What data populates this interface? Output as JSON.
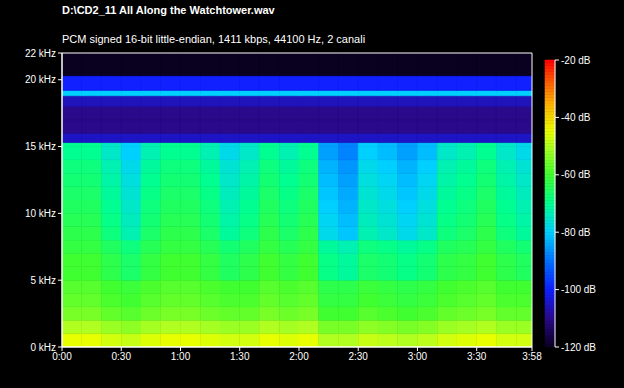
{
  "chart_data": {
    "type": "heatmap",
    "title": "D:\\CD2_11 All Along the Watchtower.wav",
    "subtitle": "PCM signed 16-bit little-endian, 1411 kbps, 44100 Hz, 2 canali",
    "xlim": [
      0,
      238
    ],
    "xticks": [
      {
        "value": 0,
        "label": "0:00"
      },
      {
        "value": 30,
        "label": "0:30"
      },
      {
        "value": 60,
        "label": "1:00"
      },
      {
        "value": 90,
        "label": "1:30"
      },
      {
        "value": 120,
        "label": "2:00"
      },
      {
        "value": 150,
        "label": "2:30"
      },
      {
        "value": 180,
        "label": "3:00"
      },
      {
        "value": 210,
        "label": "3:30"
      },
      {
        "value": 238,
        "label": "3:58"
      }
    ],
    "ylim": [
      0,
      22
    ],
    "yticks": [
      {
        "value": 0,
        "label": "0 kHz"
      },
      {
        "value": 5,
        "label": "5 kHz"
      },
      {
        "value": 10,
        "label": "10 kHz"
      },
      {
        "value": 15,
        "label": "15 kHz"
      },
      {
        "value": 20,
        "label": "20 kHz"
      },
      {
        "value": 22,
        "label": "22 kHz"
      }
    ],
    "x_edges": [
      0,
      10,
      20,
      30,
      40,
      50,
      60,
      70,
      80,
      90,
      100,
      110,
      120,
      130,
      140,
      150,
      160,
      170,
      180,
      190,
      200,
      210,
      220,
      230,
      238
    ],
    "y_edges": [
      0,
      1,
      2,
      3,
      4,
      5,
      6,
      7,
      8,
      9,
      10,
      11,
      12,
      13,
      14,
      15,
      15.3,
      16,
      17,
      18,
      18.8,
      19.2,
      20.3,
      22
    ],
    "cells": [
      [
        -45,
        -45,
        -47,
        -48,
        -46,
        -45,
        -45,
        -46,
        -47,
        -47,
        -45,
        -46,
        -45,
        -50,
        -50,
        -48,
        -49,
        -50,
        -49,
        -47,
        -46,
        -45,
        -47,
        -47
      ],
      [
        -50,
        -50,
        -52,
        -53,
        -51,
        -50,
        -50,
        -51,
        -52,
        -52,
        -50,
        -51,
        -50,
        -55,
        -55,
        -53,
        -54,
        -55,
        -54,
        -52,
        -51,
        -50,
        -52,
        -52
      ],
      [
        -55,
        -55,
        -57,
        -58,
        -56,
        -55,
        -55,
        -56,
        -57,
        -57,
        -55,
        -56,
        -55,
        -60,
        -60,
        -58,
        -59,
        -60,
        -59,
        -57,
        -56,
        -55,
        -57,
        -57
      ],
      [
        -57,
        -57,
        -59,
        -60,
        -58,
        -57,
        -57,
        -58,
        -59,
        -59,
        -57,
        -58,
        -57,
        -62,
        -62,
        -60,
        -61,
        -62,
        -61,
        -59,
        -58,
        -57,
        -59,
        -59
      ],
      [
        -58,
        -58,
        -60,
        -61,
        -59,
        -58,
        -58,
        -59,
        -60,
        -60,
        -58,
        -59,
        -58,
        -63,
        -63,
        -61,
        -62,
        -63,
        -62,
        -60,
        -59,
        -58,
        -60,
        -60
      ],
      [
        -60,
        -60,
        -63,
        -66,
        -62,
        -60,
        -60,
        -62,
        -65,
        -63,
        -60,
        -62,
        -60,
        -69,
        -71,
        -66,
        -67,
        -69,
        -67,
        -63,
        -62,
        -60,
        -63,
        -65
      ],
      [
        -60,
        -60,
        -63,
        -66,
        -62,
        -60,
        -60,
        -62,
        -65,
        -63,
        -60,
        -62,
        -60,
        -69,
        -71,
        -66,
        -67,
        -69,
        -67,
        -63,
        -62,
        -60,
        -63,
        -65
      ],
      [
        -62,
        -62,
        -65,
        -68,
        -64,
        -62,
        -62,
        -64,
        -67,
        -65,
        -62,
        -64,
        -62,
        -71,
        -73,
        -68,
        -69,
        -71,
        -69,
        -65,
        -64,
        -62,
        -65,
        -67
      ],
      [
        -63,
        -63,
        -68,
        -73,
        -66,
        -63,
        -63,
        -66,
        -71,
        -68,
        -63,
        -66,
        -63,
        -78,
        -81,
        -73,
        -75,
        -78,
        -75,
        -68,
        -66,
        -63,
        -68,
        -71
      ],
      [
        -64,
        -64,
        -69,
        -74,
        -67,
        -64,
        -64,
        -67,
        -72,
        -69,
        -64,
        -67,
        -64,
        -79,
        -82,
        -74,
        -76,
        -79,
        -76,
        -69,
        -67,
        -64,
        -69,
        -72
      ],
      [
        -65,
        -65,
        -70,
        -75,
        -68,
        -65,
        -65,
        -68,
        -73,
        -70,
        -65,
        -68,
        -65,
        -80,
        -83,
        -75,
        -77,
        -80,
        -77,
        -70,
        -68,
        -65,
        -70,
        -73
      ],
      [
        -66,
        -66,
        -71,
        -76,
        -69,
        -66,
        -66,
        -69,
        -74,
        -71,
        -66,
        -69,
        -66,
        -81,
        -84,
        -76,
        -78,
        -81,
        -78,
        -71,
        -69,
        -66,
        -71,
        -74
      ],
      [
        -67,
        -67,
        -72,
        -77,
        -70,
        -67,
        -67,
        -70,
        -75,
        -72,
        -67,
        -70,
        -67,
        -82,
        -85,
        -77,
        -79,
        -82,
        -79,
        -72,
        -70,
        -67,
        -72,
        -75
      ],
      [
        -68,
        -68,
        -73,
        -78,
        -71,
        -68,
        -68,
        -71,
        -76,
        -73,
        -68,
        -71,
        -68,
        -83,
        -86,
        -78,
        -80,
        -83,
        -80,
        -73,
        -71,
        -68,
        -73,
        -76
      ],
      [
        -70,
        -70,
        -75,
        -80,
        -73,
        -70,
        -70,
        -73,
        -78,
        -75,
        -70,
        -73,
        -70,
        -85,
        -88,
        -80,
        -82,
        -85,
        -82,
        -75,
        -73,
        -70,
        -75,
        -78
      ],
      [
        -70,
        -70,
        -75,
        -80,
        -73,
        -70,
        -70,
        -73,
        -78,
        -75,
        -70,
        -73,
        -70,
        -85,
        -88,
        -80,
        -82,
        -85,
        -82,
        -75,
        -73,
        -70,
        -75,
        -78
      ],
      [
        -105,
        -105,
        -105,
        -105,
        -105,
        -105,
        -105,
        -105,
        -105,
        -105,
        -105,
        -105,
        -105,
        -105,
        -105,
        -105,
        -105,
        -105,
        -105,
        -105,
        -105,
        -105,
        -105,
        -105
      ],
      [
        -110,
        -110,
        -110,
        -110,
        -110,
        -110,
        -110,
        -110,
        -110,
        -110,
        -110,
        -110,
        -110,
        -110,
        -110,
        -110,
        -110,
        -110,
        -110,
        -110,
        -110,
        -110,
        -110,
        -110
      ],
      [
        -110,
        -110,
        -110,
        -110,
        -110,
        -110,
        -110,
        -110,
        -110,
        -110,
        -110,
        -110,
        -110,
        -110,
        -110,
        -110,
        -110,
        -110,
        -110,
        -110,
        -110,
        -110,
        -110,
        -110
      ],
      [
        -106,
        -106,
        -106,
        -106,
        -106,
        -106,
        -106,
        -106,
        -106,
        -106,
        -106,
        -106,
        -106,
        -106,
        -106,
        -106,
        -106,
        -106,
        -106,
        -106,
        -106,
        -106,
        -106,
        -106
      ],
      [
        -80,
        -80,
        -80,
        -80,
        -80,
        -80,
        -80,
        -80,
        -80,
        -80,
        -80,
        -80,
        -80,
        -80,
        -80,
        -80,
        -80,
        -80,
        -80,
        -80,
        -80,
        -80,
        -80,
        -80
      ],
      [
        -100,
        -100,
        -100,
        -100,
        -100,
        -100,
        -100,
        -100,
        -100,
        -100,
        -100,
        -100,
        -100,
        -100,
        -100,
        -100,
        -100,
        -100,
        -100,
        -100,
        -100,
        -100,
        -100,
        -100
      ],
      [
        -120,
        -120,
        -120,
        -120,
        -120,
        -120,
        -120,
        -120,
        -120,
        -120,
        -120,
        -120,
        -120,
        -120,
        -120,
        -120,
        -120,
        -120,
        -120,
        -120,
        -120,
        -120,
        -120,
        -120
      ]
    ],
    "colorbar": {
      "range": [
        -120,
        -20
      ],
      "ticks": [
        {
          "value": -20,
          "label": "-20 dB"
        },
        {
          "value": -40,
          "label": "-40 dB"
        },
        {
          "value": -60,
          "label": "-60 dB"
        },
        {
          "value": -80,
          "label": "-80 dB"
        },
        {
          "value": -100,
          "label": "-100 dB"
        },
        {
          "value": -120,
          "label": "-120 dB"
        }
      ]
    }
  }
}
